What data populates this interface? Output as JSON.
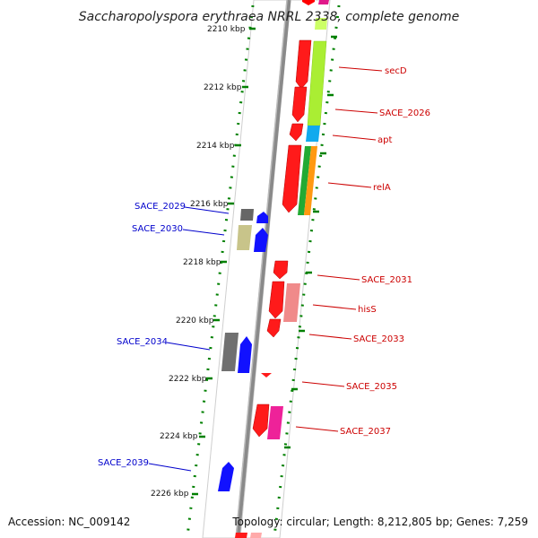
{
  "title": "Saccharopolyspora erythraea NRRL 2338, complete genome",
  "footer": {
    "accession": "Accession: NC_009142",
    "topology": "Topology: circular; Length: 8,212,805 bp; Genes: 7,259"
  },
  "ticks": [
    "2210 kbp",
    "2212 kbp",
    "2214 kbp",
    "2216 kbp",
    "2218 kbp",
    "2220 kbp",
    "2222 kbp",
    "2224 kbp",
    "2226 kbp"
  ],
  "genes_left": [
    "SACE_2029",
    "SACE_2030",
    "SACE_2034",
    "SACE_2039"
  ],
  "genes_right": [
    "secD",
    "SACE_2026",
    "apt",
    "relA",
    "SACE_2031",
    "hisS",
    "SACE_2033",
    "SACE_2035",
    "SACE_2037"
  ],
  "colors": {
    "forward_label": "#0000cc",
    "reverse_label": "#cc0000",
    "forward_gene": "#0000ff",
    "reverse_gene": "#ff0000",
    "tick": "#008000",
    "axis": "#888888"
  }
}
